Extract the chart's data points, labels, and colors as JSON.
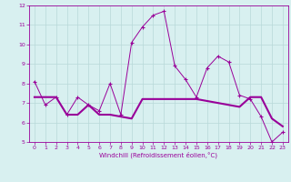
{
  "xlabel": "Windchill (Refroidissement éolien,°C)",
  "x": [
    0,
    1,
    2,
    3,
    4,
    5,
    6,
    7,
    8,
    9,
    10,
    11,
    12,
    13,
    14,
    15,
    16,
    17,
    18,
    19,
    20,
    21,
    22,
    23
  ],
  "line1": [
    8.1,
    6.9,
    7.3,
    6.4,
    7.3,
    6.9,
    6.6,
    8.0,
    6.4,
    10.1,
    10.9,
    11.5,
    11.7,
    8.9,
    8.2,
    7.3,
    8.8,
    9.4,
    9.1,
    7.4,
    7.2,
    6.3,
    5.0,
    5.5
  ],
  "line2": [
    7.3,
    7.3,
    7.3,
    6.4,
    6.4,
    6.9,
    6.4,
    6.4,
    6.3,
    6.2,
    7.2,
    7.2,
    7.2,
    7.2,
    7.2,
    7.2,
    7.1,
    7.0,
    6.9,
    6.8,
    7.3,
    7.3,
    6.2,
    5.8
  ],
  "line_color": "#990099",
  "bg_color": "#d8f0f0",
  "grid_color": "#b8d8d8",
  "ylim": [
    5,
    12
  ],
  "xlim": [
    -0.5,
    23.5
  ],
  "yticks": [
    5,
    6,
    7,
    8,
    9,
    10,
    11,
    12
  ],
  "xticks": [
    0,
    1,
    2,
    3,
    4,
    5,
    6,
    7,
    8,
    9,
    10,
    11,
    12,
    13,
    14,
    15,
    16,
    17,
    18,
    19,
    20,
    21,
    22,
    23
  ]
}
